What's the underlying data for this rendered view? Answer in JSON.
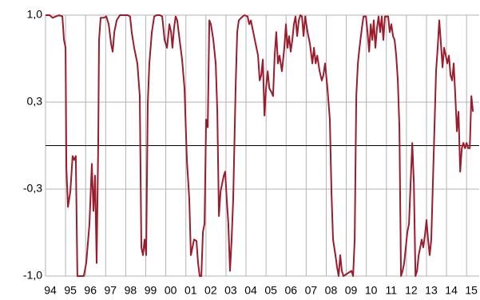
{
  "chart_data": {
    "type": "line",
    "x": [
      1994.0,
      1994.2,
      1994.36,
      1994.52,
      1994.68,
      1994.84,
      1994.92,
      1995.0,
      1995.04,
      1995.12,
      1995.24,
      1995.35,
      1995.43,
      1995.51,
      1995.59,
      1995.91,
      1996.03,
      1996.19,
      1996.31,
      1996.39,
      1996.47,
      1996.55,
      1996.63,
      1996.67,
      1996.75,
      1996.91,
      1997.03,
      1997.15,
      1997.27,
      1997.35,
      1997.43,
      1997.55,
      1997.71,
      1998.1,
      1998.22,
      1998.3,
      1998.42,
      1998.58,
      1998.7,
      1998.78,
      1998.86,
      1998.94,
      1999.02,
      1999.1,
      1999.18,
      1999.3,
      1999.42,
      1999.54,
      1999.7,
      1999.82,
      1999.94,
      2000.06,
      2000.18,
      2000.26,
      2000.33,
      2000.41,
      2000.49,
      2000.57,
      2000.69,
      2000.81,
      2000.93,
      2001.05,
      2001.17,
      2001.25,
      2001.33,
      2001.41,
      2001.53,
      2001.61,
      2001.69,
      2001.77,
      2001.85,
      2001.93,
      2002.01,
      2002.09,
      2002.17,
      2002.25,
      2002.37,
      2002.49,
      2002.57,
      2002.65,
      2002.73,
      2002.81,
      2002.89,
      2002.96,
      2003.04,
      2003.12,
      2003.2,
      2003.28,
      2003.36,
      2003.48,
      2003.56,
      2003.64,
      2003.76,
      2003.92,
      2004.08,
      2004.16,
      2004.24,
      2004.36,
      2004.48,
      2004.6,
      2004.68,
      2004.76,
      2004.84,
      2004.92,
      2005.0,
      2005.08,
      2005.16,
      2005.27,
      2005.35,
      2005.43,
      2005.51,
      2005.59,
      2005.67,
      2005.79,
      2005.91,
      2005.99,
      2006.07,
      2006.15,
      2006.23,
      2006.31,
      2006.39,
      2006.47,
      2006.55,
      2006.63,
      2006.71,
      2006.79,
      2006.87,
      2006.95,
      2007.07,
      2007.19,
      2007.31,
      2007.39,
      2007.47,
      2007.55,
      2007.67,
      2007.78,
      2007.86,
      2007.94,
      2008.06,
      2008.18,
      2008.26,
      2008.34,
      2008.46,
      2008.54,
      2008.62,
      2008.7,
      2008.78,
      2008.86,
      2009.26,
      2009.34,
      2009.42,
      2009.5,
      2009.58,
      2009.66,
      2009.78,
      2009.86,
      2009.98,
      2010.06,
      2010.14,
      2010.22,
      2010.3,
      2010.37,
      2010.45,
      2010.53,
      2010.61,
      2010.69,
      2010.77,
      2010.85,
      2010.93,
      2011.09,
      2011.17,
      2011.25,
      2011.33,
      2011.41,
      2011.49,
      2011.57,
      2011.65,
      2011.73,
      2011.81,
      2011.89,
      2011.97,
      2012.05,
      2012.13,
      2012.21,
      2012.29,
      2012.37,
      2012.45,
      2012.53,
      2012.61,
      2012.69,
      2012.76,
      2012.84,
      2012.92,
      2013.0,
      2013.08,
      2013.16,
      2013.24,
      2013.32,
      2013.4,
      2013.48,
      2013.56,
      2013.64,
      2013.72,
      2013.8,
      2013.88,
      2013.96,
      2014.04,
      2014.12,
      2014.2,
      2014.28,
      2014.36,
      2014.44,
      2014.52,
      2014.6,
      2014.68,
      2014.76,
      2014.84,
      2014.92,
      2015.0,
      2015.08,
      2015.16,
      2015.24,
      2015.32
    ],
    "series": [
      {
        "color": "#9b1c2c",
        "values": [
          1.0,
          1.0,
          0.98,
          0.99,
          1.0,
          0.99,
          0.81,
          0.75,
          -0.17,
          -0.47,
          -0.35,
          -0.08,
          -0.11,
          -0.08,
          -1.0,
          -1.0,
          -0.9,
          -0.6,
          -0.14,
          -0.5,
          -0.23,
          -0.9,
          0.02,
          0.81,
          0.98,
          0.98,
          0.99,
          0.93,
          0.78,
          0.72,
          0.87,
          0.96,
          1.0,
          1.0,
          0.99,
          0.87,
          0.75,
          0.63,
          0.38,
          -0.78,
          -0.84,
          -0.72,
          -0.84,
          0.32,
          0.63,
          0.87,
          0.99,
          1.0,
          1.0,
          0.99,
          0.81,
          0.75,
          0.93,
          0.87,
          0.75,
          0.9,
          0.99,
          0.96,
          0.81,
          0.66,
          0.44,
          -0.11,
          -0.41,
          -0.84,
          -0.78,
          -0.72,
          -0.73,
          -0.9,
          -1.0,
          -1.0,
          -0.66,
          -0.6,
          0.2,
          0.14,
          0.96,
          0.93,
          0.81,
          0.63,
          0.26,
          -0.54,
          -0.35,
          -0.29,
          -0.23,
          -0.2,
          -0.41,
          -0.6,
          -0.96,
          -0.72,
          -0.41,
          0.44,
          0.87,
          0.96,
          0.98,
          1.0,
          0.99,
          0.93,
          0.96,
          0.87,
          0.78,
          0.69,
          0.5,
          0.54,
          0.66,
          0.23,
          0.44,
          0.57,
          0.44,
          0.41,
          0.38,
          0.69,
          0.87,
          0.63,
          0.69,
          0.57,
          0.75,
          0.93,
          0.75,
          0.84,
          0.72,
          0.81,
          0.93,
          0.99,
          0.84,
          0.96,
          1.0,
          0.99,
          0.84,
          0.99,
          0.87,
          0.78,
          0.63,
          0.75,
          0.63,
          0.69,
          0.57,
          0.5,
          0.54,
          0.63,
          0.44,
          0.2,
          -0.35,
          -0.72,
          -0.84,
          -0.93,
          -1.0,
          -0.84,
          -0.96,
          -1.0,
          -0.96,
          -1.0,
          -0.72,
          0.38,
          0.63,
          0.75,
          0.9,
          0.99,
          0.99,
          0.87,
          0.72,
          0.93,
          0.81,
          0.96,
          0.75,
          0.9,
          0.99,
          0.87,
          0.99,
          0.81,
          0.99,
          0.99,
          0.87,
          0.93,
          0.84,
          0.81,
          0.69,
          0.5,
          0.14,
          -1.0,
          -0.96,
          -0.9,
          -0.78,
          -0.66,
          -0.6,
          -0.29,
          0.02,
          -0.29,
          -1.0,
          -0.96,
          -0.84,
          -0.78,
          -0.72,
          -0.78,
          -0.69,
          -0.57,
          -0.72,
          -0.84,
          -0.72,
          -0.29,
          0.14,
          0.57,
          0.75,
          0.96,
          0.78,
          0.6,
          0.75,
          0.69,
          0.63,
          0.69,
          0.54,
          0.5,
          0.63,
          0.38,
          0.11,
          0.26,
          -0.2,
          -0.02,
          0.02,
          -0.02,
          0.02,
          -0.02,
          -0.02,
          0.38,
          0.26
        ]
      }
    ],
    "xlim": [
      1994,
      2015.63
    ],
    "xticks": [
      {
        "value": 1994,
        "label": "94"
      },
      {
        "value": 1995,
        "label": "95"
      },
      {
        "value": 1996,
        "label": "96"
      },
      {
        "value": 1997,
        "label": "97"
      },
      {
        "value": 1998,
        "label": "98"
      },
      {
        "value": 1999,
        "label": "99"
      },
      {
        "value": 2000,
        "label": "00"
      },
      {
        "value": 2001,
        "label": "01"
      },
      {
        "value": 2002,
        "label": "02"
      },
      {
        "value": 2003,
        "label": "03"
      },
      {
        "value": 2004,
        "label": "04"
      },
      {
        "value": 2005,
        "label": "05"
      },
      {
        "value": 2006,
        "label": "06"
      },
      {
        "value": 2007,
        "label": "07"
      },
      {
        "value": 2008,
        "label": "08"
      },
      {
        "value": 2009,
        "label": "09"
      },
      {
        "value": 2010,
        "label": "10"
      },
      {
        "value": 2011,
        "label": "11"
      },
      {
        "value": 2012,
        "label": "12"
      },
      {
        "value": 2013,
        "label": "13"
      },
      {
        "value": 2014,
        "label": "14"
      },
      {
        "value": 2015,
        "label": "15"
      }
    ],
    "ylim": [
      -1,
      1
    ],
    "yticks": [
      {
        "value": -1,
        "label": "-1,0"
      },
      {
        "value": -0.3333,
        "label": "-0,3"
      },
      {
        "value": 0.3333,
        "label": "0,3"
      },
      {
        "value": 1,
        "label": "1,0"
      }
    ],
    "grid": true
  }
}
